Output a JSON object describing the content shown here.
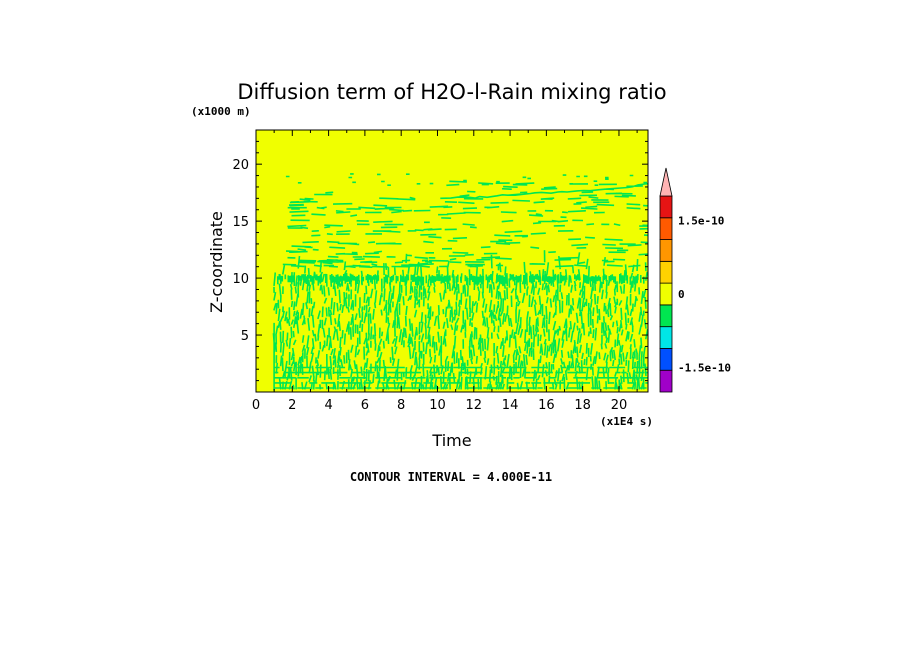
{
  "chart_data": {
    "type": "heatmap",
    "title": "Diffusion term of H2O-l-Rain mixing ratio",
    "xlabel": "Time",
    "ylabel": "Z-coordinate",
    "x_unit": "(x1E4 s)",
    "y_unit": "(x1000 m)",
    "xlim": [
      0,
      21.6
    ],
    "ylim": [
      0,
      23
    ],
    "x_ticks": [
      "0",
      "2",
      "4",
      "6",
      "8",
      "10",
      "12",
      "14",
      "16",
      "18",
      "20"
    ],
    "y_ticks": [
      "5",
      "10",
      "15",
      "20"
    ],
    "x_tick_values": [
      0,
      2,
      4,
      6,
      8,
      10,
      12,
      14,
      16,
      18,
      20
    ],
    "y_tick_values": [
      5,
      10,
      15,
      20
    ],
    "background_level": "0 to 4e-11",
    "features": [
      {
        "description": "dense alternating slightly-negative/near-zero values",
        "x_range": [
          1,
          21.6
        ],
        "z_range": [
          0.2,
          11
        ]
      },
      {
        "description": "persistent slightly-negative band",
        "x_range": [
          1.2,
          21.6
        ],
        "z_range": [
          9.3,
          10.3
        ]
      },
      {
        "description": "sparse slightly-negative streaks",
        "x_range": [
          1.5,
          21.6
        ],
        "z_range": [
          11,
          18.5
        ]
      }
    ],
    "colorbar": {
      "colors": [
        "#a000c8",
        "#0050ff",
        "#00e6e6",
        "#00e650",
        "#f0ff00",
        "#ffd200",
        "#ff9600",
        "#ff5a00",
        "#e61414",
        "#ffb4b4"
      ],
      "labels": [
        "-1.5e-10",
        "0",
        "1.5e-10"
      ],
      "label_values": [
        -1.5e-10,
        0,
        1.5e-10
      ],
      "range": [
        -2e-10,
        2e-10
      ],
      "extend": "max"
    },
    "contour_interval": "CONTOUR INTERVAL = 4.000E-11"
  }
}
